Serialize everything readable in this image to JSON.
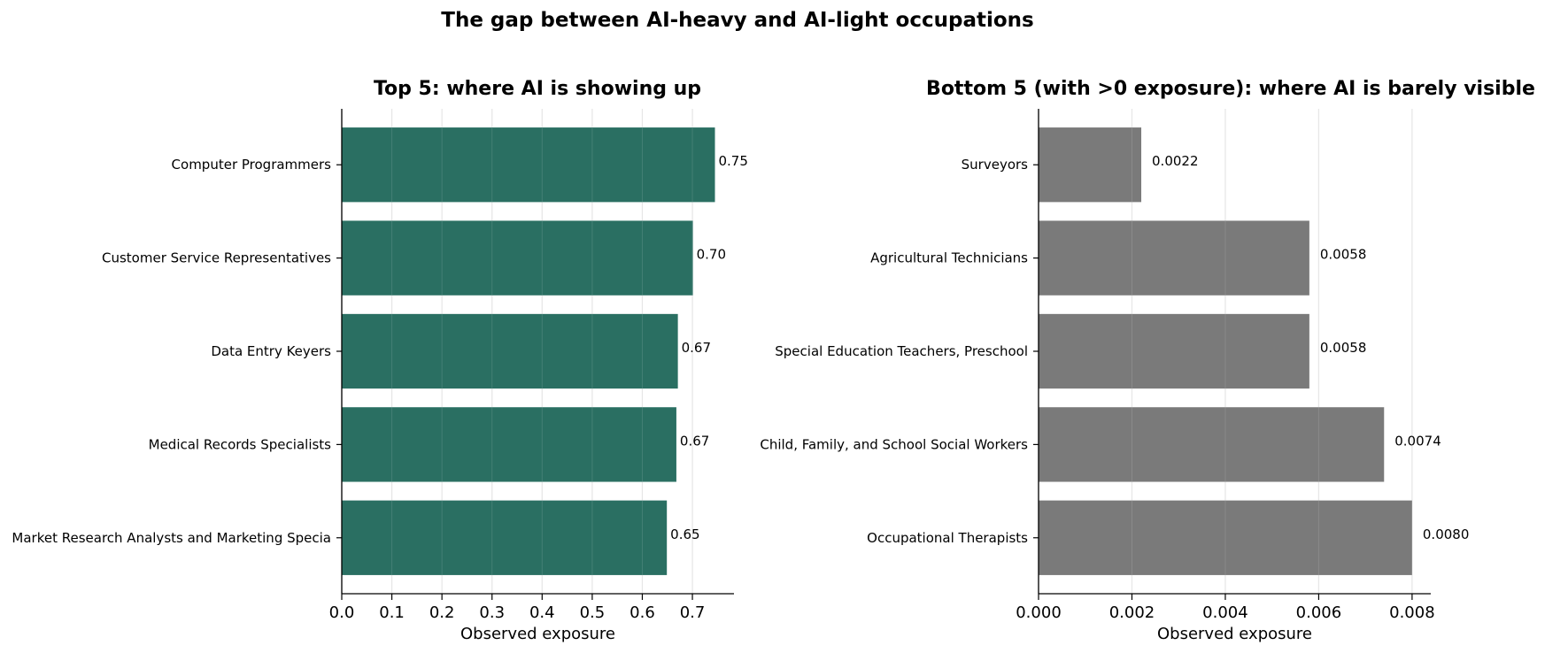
{
  "figure": {
    "suptitle": "The gap between AI-heavy and AI-light occupations"
  },
  "chart_data": [
    {
      "type": "bar",
      "orientation": "horizontal",
      "title": "Top 5: where AI is showing up",
      "xlabel": "Observed exposure",
      "ylabel": "",
      "categories": [
        "Computer Programmers",
        "Customer Service Representatives",
        "Data Entry Keyers",
        "Medical Records Specialists",
        "Market Research Analysts and Marketing Specia"
      ],
      "values": [
        0.745,
        0.701,
        0.671,
        0.668,
        0.649
      ],
      "data_labels": [
        "0.75",
        "0.70",
        "0.67",
        "0.67",
        "0.65"
      ],
      "xlim": [
        0,
        0.783
      ],
      "xticks": [
        0.0,
        0.1,
        0.2,
        0.3,
        0.4,
        0.5,
        0.6,
        0.7
      ],
      "xtick_labels": [
        "0.0",
        "0.1",
        "0.2",
        "0.3",
        "0.4",
        "0.5",
        "0.6",
        "0.7"
      ],
      "grid": "x",
      "color": "#2a6f62"
    },
    {
      "type": "bar",
      "orientation": "horizontal",
      "title": "Bottom 5 (with >0 exposure): where AI is barely visible",
      "xlabel": "Observed exposure",
      "ylabel": "",
      "categories": [
        "Surveyors",
        "Agricultural Technicians",
        "Special Education Teachers, Preschool",
        "Child, Family, and School Social Workers",
        "Occupational Therapists"
      ],
      "values": [
        0.0022,
        0.0058,
        0.0058,
        0.0074,
        0.008
      ],
      "data_labels": [
        "0.0022",
        "0.0058",
        "0.0058",
        "0.0074",
        "0.0080"
      ],
      "xlim": [
        0,
        0.0084
      ],
      "xticks": [
        0.0,
        0.002,
        0.004,
        0.006,
        0.008
      ],
      "xtick_labels": [
        "0.000",
        "0.002",
        "0.004",
        "0.006",
        "0.008"
      ],
      "grid": "x",
      "color": "#7a7a7a"
    }
  ]
}
